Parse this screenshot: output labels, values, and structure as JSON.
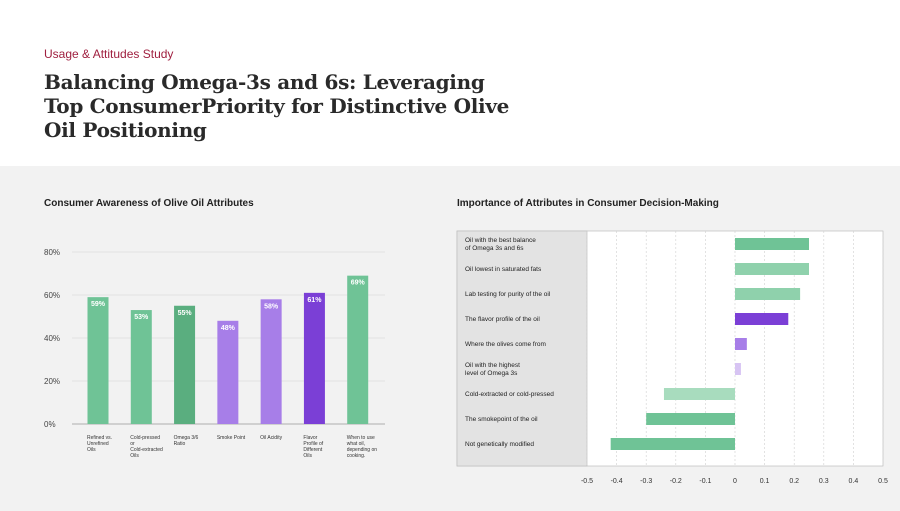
{
  "header": {
    "eyebrow": "Usage & Attitudes Study",
    "title": "Balancing Omega-3s and 6s: Leveraging Top ConsumerPriority for Distinctive Olive Oil Positioning"
  },
  "colors": {
    "green": "#6fc396",
    "green_dark": "#5aae7f",
    "green_light": "#a8dcbe",
    "purple": "#a77ee8",
    "purple_dark": "#7b3fd6",
    "purple_light": "#d7c4f3",
    "accent_red": "#a02040"
  },
  "chart_data": [
    {
      "type": "bar",
      "title": "Consumer Awareness of Olive Oil Attributes",
      "categories": [
        "Refined vs. Unrefined Oils",
        "Cold-pressed or Cold-extracted Oils",
        "Omega 3/6 Ratio",
        "Smoke Point",
        "Oil Acidity",
        "Flavor Profile of Different Oils",
        "When to use what oil, depending on cooking."
      ],
      "values": [
        59,
        53,
        55,
        48,
        58,
        61,
        69
      ],
      "value_labels": [
        "59%",
        "53%",
        "55%",
        "48%",
        "58%",
        "61%",
        "69%"
      ],
      "colors": [
        "#6fc396",
        "#6fc396",
        "#5aae7f",
        "#a77ee8",
        "#a77ee8",
        "#7b3fd6",
        "#6fc396"
      ],
      "yticks": [
        "0%",
        "20%",
        "40%",
        "60%",
        "80%"
      ],
      "ylim": [
        0,
        80
      ],
      "grid": true
    },
    {
      "type": "bar",
      "orientation": "horizontal",
      "title": "Importance of Attributes in Consumer Decision-Making",
      "categories": [
        "Oil with the best balance of Omega 3s and 6s",
        "Oil lowest in saturated fats",
        "Lab testing for purity of the oil",
        "The flavor profile of the oil",
        "Where the olives come from",
        "Oil with the highest level of Omega 3s",
        "Cold-extracted or cold-pressed",
        "The smokepoint of the oil",
        "Not genetically modified"
      ],
      "label_lines": [
        [
          "Oil with the best balance",
          "of Omega 3s and 6s"
        ],
        [
          "Oil lowest in saturated fats"
        ],
        [
          "Lab testing for purity of the oil"
        ],
        [
          "The flavor profile of the oil"
        ],
        [
          "Where the olives come from"
        ],
        [
          "Oil with the highest",
          "level of Omega 3s"
        ],
        [
          "Cold-extracted or cold-pressed"
        ],
        [
          "The smokepoint of the oil"
        ],
        [
          "Not genetically modified"
        ]
      ],
      "values": [
        0.25,
        0.25,
        0.22,
        0.18,
        0.04,
        0.02,
        -0.24,
        -0.3,
        -0.42
      ],
      "colors": [
        "#6fc396",
        "#8fd1ac",
        "#8fd1ac",
        "#7b3fd6",
        "#a77ee8",
        "#d7c4f3",
        "#a8dcbe",
        "#6fc396",
        "#6fc396"
      ],
      "xticks": [
        "-0.5",
        "-0.4",
        "-0.3",
        "-0.2",
        "-0.1",
        "0",
        "0.1",
        "0.2",
        "0.3",
        "0.4",
        "0.5"
      ],
      "xlim": [
        -0.5,
        0.5
      ],
      "grid": true
    }
  ]
}
